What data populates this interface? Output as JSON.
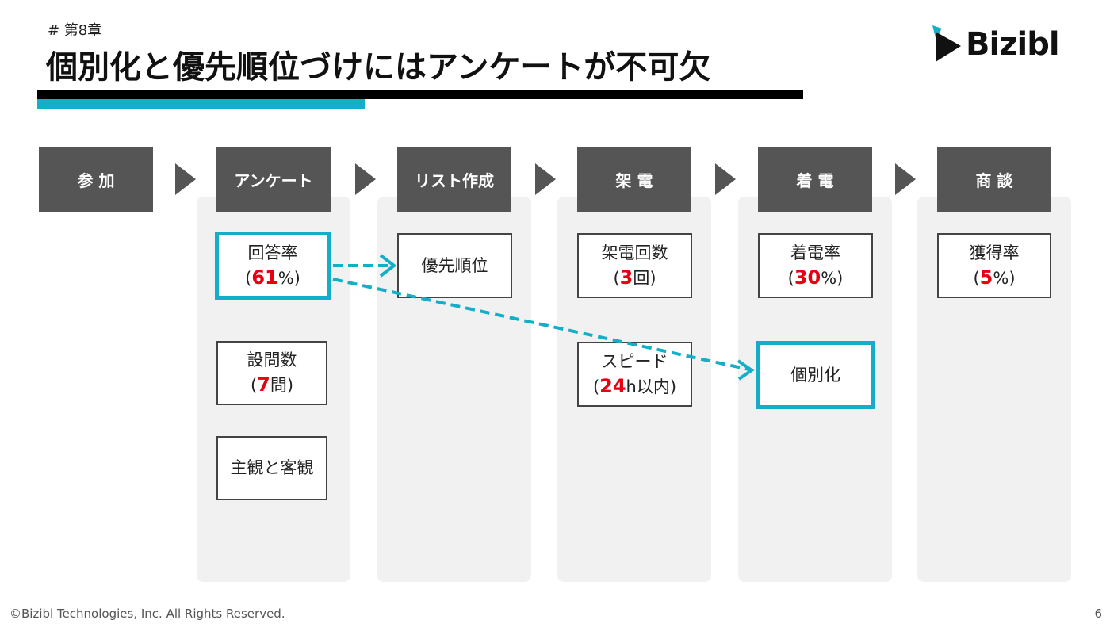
{
  "header": {
    "chapter": "#  第8章",
    "title": "個別化と優先順位づけにはアンケートが不可欠"
  },
  "logo": {
    "text": "Bizibl",
    "accent_color": "#13aec8"
  },
  "colors": {
    "teal": "#13aec8",
    "stage_gray": "#555555",
    "highlight_red": "#e60012"
  },
  "stages": [
    "参 加",
    "アンケート",
    "リスト作成",
    "架 電",
    "着 電",
    "商 談"
  ],
  "boxes": {
    "response_rate": {
      "label": "回答率",
      "open": "(",
      "num": "61",
      "close": "%)"
    },
    "question_count": {
      "label": "設問数",
      "open": "(",
      "num": "7",
      "close": "問)"
    },
    "subjective_objective": {
      "label": "主観と客観"
    },
    "priority": {
      "label": "優先順位"
    },
    "call_count": {
      "label": "架電回数",
      "open": "(",
      "num": "3",
      "close": "回)"
    },
    "speed": {
      "label": "スピード",
      "open": "(",
      "num": "24",
      "close": "h以内)"
    },
    "connect_rate": {
      "label": "着電率",
      "open": "(",
      "num": "30",
      "close": "%)"
    },
    "personalization": {
      "label": "個別化"
    },
    "win_rate": {
      "label": "獲得率",
      "open": "(",
      "num": "5",
      "close": "%)"
    }
  },
  "footer": {
    "copyright": "©Bizibl Technologies, Inc. All Rights Reserved.",
    "page": "6"
  }
}
